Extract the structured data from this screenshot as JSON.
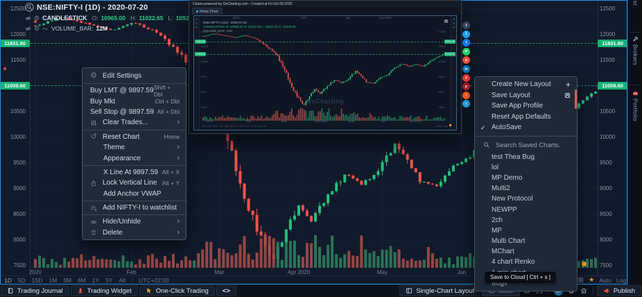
{
  "header": {
    "symbol": "NSE:NIFTY-I (1D) - 2020-07-20",
    "study_label": "CANDLESTICK",
    "ohlc": {
      "o_label": "O:",
      "o": "10965.00",
      "h_label": "H:",
      "h": "11022.65",
      "l_label": "L:",
      "l": "10921.00",
      "c_label": "C:",
      "c": "11008.6"
    },
    "volume_label": "VOLUME_BAR:",
    "volume_value": "12M"
  },
  "price_axis": {
    "ticks": [
      "12500",
      "12000",
      "11500",
      "10500",
      "10000",
      "9500",
      "9000",
      "8500",
      "8000",
      "7500"
    ],
    "tags": [
      {
        "label": "11831.80",
        "price": 11831.8
      },
      {
        "label": "11008.60",
        "price": 11008.6
      }
    ]
  },
  "time_axis": [
    {
      "label": "2020",
      "idx": 0
    },
    {
      "label": "Feb",
      "idx": 23
    },
    {
      "label": "Mar",
      "idx": 44
    },
    {
      "label": "Apr 2020",
      "idx": 63
    },
    {
      "label": "May",
      "idx": 83
    },
    {
      "label": "Jun",
      "idx": 102
    }
  ],
  "chart_data": {
    "type": "candlestick",
    "symbol": "NSE:NIFTY-I",
    "interval": "1D",
    "visible_range": [
      "Jan 2020",
      "Jul 2020"
    ],
    "ohlc_current": {
      "open": 10965.0,
      "high": 11022.65,
      "low": 10921.0,
      "close": 11008.6
    },
    "price_levels": [
      11831.8,
      11008.6
    ],
    "ylim": [
      7500,
      12500
    ],
    "trend_keypoints": [
      [
        0,
        12180
      ],
      [
        6,
        12340
      ],
      [
        12,
        12230
      ],
      [
        18,
        12090
      ],
      [
        24,
        12240
      ],
      [
        30,
        12000
      ],
      [
        34,
        11680
      ],
      [
        38,
        11290
      ],
      [
        42,
        10850
      ],
      [
        45,
        10150
      ],
      [
        48,
        9350
      ],
      [
        51,
        8650
      ],
      [
        54,
        8050
      ],
      [
        57,
        7630
      ],
      [
        60,
        8200
      ],
      [
        63,
        8680
      ],
      [
        66,
        8350
      ],
      [
        70,
        8850
      ],
      [
        74,
        9280
      ],
      [
        78,
        9080
      ],
      [
        82,
        9320
      ],
      [
        86,
        9870
      ],
      [
        89,
        9560
      ],
      [
        92,
        9160
      ],
      [
        96,
        9060
      ],
      [
        100,
        9460
      ],
      [
        104,
        9620
      ],
      [
        108,
        10070
      ],
      [
        112,
        10360
      ],
      [
        116,
        10160
      ],
      [
        120,
        10320
      ],
      [
        124,
        10180
      ],
      [
        128,
        10520
      ],
      [
        131,
        10760
      ],
      [
        136,
        11008
      ]
    ]
  },
  "context_menu": {
    "groups": [
      [
        {
          "icon": "gear",
          "label": "Edit Settings"
        }
      ],
      [
        {
          "label": "Buy LMT @ 9897.59",
          "shortcut": "Shift + Dbl",
          "flush": true
        },
        {
          "label": "Buy Mkt",
          "shortcut": "Ctrl + Dbl",
          "flush": true
        },
        {
          "label": "Sell Stop @ 9897.59",
          "shortcut": "Alt + Dbl",
          "flush": true
        },
        {
          "icon": "sliders",
          "label": "Clear Trades...",
          "submenu": true
        }
      ],
      [
        {
          "icon": "reset",
          "label": "Reset Chart",
          "shortcut": "Home"
        },
        {
          "label": "Theme",
          "submenu": true
        },
        {
          "label": "Appearance",
          "submenu": true
        }
      ],
      [
        {
          "label": "X Line At 9897.59",
          "shortcut": "Alt + X"
        },
        {
          "icon": "lock",
          "label": "Lock Vertical Line",
          "shortcut": "Alt + Y"
        },
        {
          "label": "Add Anchor VWAP"
        }
      ],
      [
        {
          "icon": "playlist",
          "label": "Add NIFTY-I to watchlist"
        }
      ],
      [
        {
          "icon": "eye",
          "label": "Hide/Unhide",
          "submenu": true
        },
        {
          "icon": "trash",
          "label": "Delete",
          "submenu": true
        }
      ]
    ]
  },
  "layout_menu": {
    "items": [
      {
        "label": "Create New Layout",
        "right_icon": "plus"
      },
      {
        "label": "Save Layout",
        "right_icon": "floppy"
      },
      {
        "label": "Save App Profile"
      },
      {
        "label": "Reset App Defaults"
      },
      {
        "label": "AutoSave",
        "checked": true
      }
    ]
  },
  "saved_charts": {
    "search_placeholder": "Search Saved Charts.",
    "items": [
      "test Thea Bug",
      "lol",
      "MP Demo",
      "Multi2",
      "New Protocol",
      "NEWPP",
      "2ch",
      "MP",
      "Multi Chart",
      "MChart",
      "4 chart Renko",
      "1 min chart",
      "Bugs"
    ]
  },
  "overlay": {
    "title": "Charts powered by GoCharting.com - Created at Fri Oct 09 2020",
    "tab": "Prime Chart",
    "watermark": "GoCharting",
    "legend_symbol": "NSE:NIFTY-I (1D) - 2020-07-20",
    "legend_study": "CANDLESTICK O: 10965.00 H: 11022.65 L: 10921.00 C: 11008.60",
    "legend_volume": "VOLUME_BAR: 12M",
    "axis_ticks": [
      "12500",
      "11500",
      "10500",
      "9500",
      "8500",
      "7500"
    ],
    "top_months": [
      {
        "label": "2020",
        "idx": 19
      },
      {
        "label": "Feb",
        "idx": 57
      },
      {
        "label": "Apr",
        "idx": 82
      },
      {
        "label": "Jun 2020",
        "idx": 103
      }
    ],
    "bottom_months": [
      {
        "label": "2020",
        "idx": 4
      },
      {
        "label": "Feb",
        "idx": 26
      },
      {
        "label": "Mar",
        "idx": 46
      },
      {
        "label": "Apr 2020",
        "idx": 67
      },
      {
        "label": "May",
        "idx": 84
      },
      {
        "label": "Jun",
        "idx": 102
      },
      {
        "label": "Jul 2020",
        "idx": 120
      }
    ],
    "timeframe_strip": "1D 5D 15D 1M 3M 6M 1Y 5Y All   UTC+02:00",
    "axis_controls": "Auto  Log"
  },
  "share_buttons": [
    {
      "name": "tumblr",
      "color": "#36465d",
      "glyph": "t"
    },
    {
      "name": "twitter",
      "color": "#1da1f2",
      "glyph": "t"
    },
    {
      "name": "facebook",
      "color": "#1877f2",
      "glyph": "f"
    },
    {
      "name": "whatsapp",
      "color": "#25d366",
      "glyph": "w"
    },
    {
      "name": "pinterest",
      "color": "#e64a3b",
      "glyph": "p"
    },
    {
      "name": "linkedin",
      "color": "#0077b5",
      "glyph": "in"
    },
    {
      "name": "youtube",
      "color": "#e53935",
      "glyph": "y"
    },
    {
      "name": "pinterest-alt",
      "color": "#ad1d2d",
      "glyph": "p"
    },
    {
      "name": "reddit",
      "color": "#ff5a1f",
      "glyph": "r"
    },
    {
      "name": "telegram",
      "color": "#2aa3e0",
      "glyph": "t"
    }
  ],
  "timeframe_bar": {
    "items": [
      "1D",
      "5D",
      "15D",
      "1M",
      "3M",
      "6M",
      "1Y",
      "5Y",
      "All"
    ],
    "timezone": "UTC+02:00",
    "auto": "Auto",
    "log": "Log"
  },
  "bottom_bar": {
    "left": [
      {
        "icon": "journal",
        "label": "Trading Journal"
      },
      {
        "icon": "rocket",
        "label": "Trading Widget"
      },
      {
        "icon": "pointer",
        "label": "One-Click Trading"
      },
      {
        "icon": "code",
        "label": "<>"
      }
    ],
    "right": [
      {
        "icon": "layout",
        "label": "Single-Chart Layout"
      },
      {
        "icon": "cloud",
        "label": "Save",
        "highlight": true
      },
      {
        "icon": "squareoutline"
      },
      {
        "icon": "expand"
      },
      {
        "sep": true
      },
      {
        "icon": "camera",
        "circle": "#2d9cdb"
      },
      {
        "icon": "ring"
      },
      {
        "icon": "bank"
      },
      {
        "sep": true
      },
      {
        "icon": "megaphone",
        "label": "Publish"
      }
    ]
  },
  "sidebar": [
    {
      "label": "Watchlist"
    },
    {
      "icon": "wrench",
      "label": "Brokers"
    },
    {
      "icon": "portfolio",
      "label": "Portfolio"
    }
  ],
  "tooltip": "Save to Cloud [ Ctrl + s ]",
  "colors": {
    "up": "#26bf7c",
    "down": "#f05350",
    "vol_up": "#2f7d5d",
    "vol_down": "#a34d4a",
    "tag": "#17b273",
    "accent": "#2196f3",
    "star": "#f5a623",
    "notification": "#f5a623",
    "alert": "#e64a3b"
  }
}
